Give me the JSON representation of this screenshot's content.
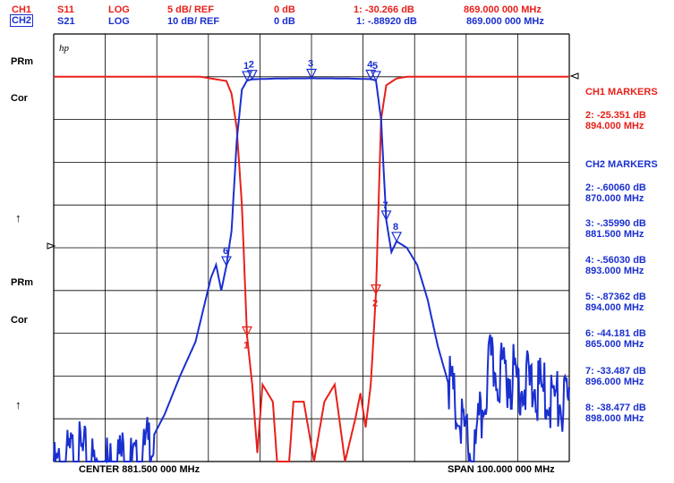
{
  "header": {
    "ch1": {
      "label": "CH1",
      "param": "S11",
      "format": "LOG",
      "scale": "5 dB/ REF",
      "ref": "0 dB",
      "marker": "1: -30.266 dB",
      "freq": "869.000 000 MHz"
    },
    "ch2": {
      "label": "CH2",
      "param": "S21",
      "format": "LOG",
      "scale": "10 dB/ REF",
      "ref": "0 dB",
      "marker": "1: -.88920 dB",
      "freq": "869.000 000 MHz"
    }
  },
  "side_labels": {
    "prm_top": "PRm",
    "cor_top": "Cor",
    "arrow_top": "↑",
    "prm_bot": "PRm",
    "cor_bot": "Cor",
    "arrow_bot": "↑"
  },
  "hp_logo": "hp",
  "ch1_markers": {
    "title": "CH1 MARKERS",
    "items": [
      {
        "label": "2: -25.351 dB",
        "freq": "894.000 MHz"
      }
    ]
  },
  "ch2_markers": {
    "title": "CH2 MARKERS",
    "items": [
      {
        "label": "2: -.60060 dB",
        "freq": "870.000 MHz"
      },
      {
        "label": "3: -.35990 dB",
        "freq": "881.500 MHz"
      },
      {
        "label": "4: -.56030 dB",
        "freq": "893.000 MHz"
      },
      {
        "label": "5: -.87362 dB",
        "freq": "894.000 MHz"
      },
      {
        "label": "6: -44.181 dB",
        "freq": "865.000 MHz"
      },
      {
        "label": "7: -33.487 dB",
        "freq": "896.000 MHz"
      },
      {
        "label": "8: -38.477 dB",
        "freq": "898.000 MHz"
      }
    ]
  },
  "footer": {
    "center": "CENTER  881.500 000 MHz",
    "span": "SPAN  100.000 000 MHz"
  },
  "colors": {
    "ch1": "#e8201a",
    "ch2": "#1a2fd0",
    "grid": "#000000"
  },
  "chart_data": {
    "type": "line",
    "x_range_mhz": [
      831.5,
      931.5
    ],
    "grid": true,
    "series": [
      {
        "name": "S11",
        "unit": "dB",
        "scale_db_per_div": 5,
        "ref_db": 0,
        "x": [
          831.5,
          860,
          865,
          866,
          867,
          868,
          869,
          870,
          871,
          872,
          874,
          876,
          878,
          880,
          882,
          884,
          886,
          888,
          890,
          891,
          892,
          893,
          894,
          895,
          896,
          898,
          900,
          931.5
        ],
        "y": [
          0,
          0,
          -0.5,
          -2,
          -6,
          -15,
          -30.3,
          -36,
          -44,
          -36,
          -38,
          -55,
          -38,
          -38,
          -45,
          -38,
          -36,
          -45,
          -40,
          -37,
          -41,
          -36,
          -25.4,
          -5,
          -1,
          -0.2,
          0,
          0
        ]
      },
      {
        "name": "S21",
        "unit": "dB",
        "scale_db_per_div": 10,
        "ref_db": 0,
        "x": [
          831.5,
          836,
          840,
          845,
          848,
          850,
          853,
          856,
          859,
          861,
          862,
          863,
          864,
          865,
          866,
          867,
          868,
          869,
          870,
          875,
          881.5,
          888,
          893,
          894,
          895,
          896,
          897,
          898,
          900,
          902,
          904,
          906,
          910,
          913,
          916,
          920,
          925,
          931.5
        ],
        "y": [
          -93,
          -88,
          -92,
          -89,
          -93,
          -86,
          -79,
          -70,
          -62,
          -52,
          -47,
          -44,
          -50,
          -44.2,
          -36,
          -15,
          -3,
          -0.89,
          -0.6,
          -0.4,
          -0.36,
          -0.4,
          -0.56,
          -0.87,
          -10,
          -33.5,
          -41,
          -38.5,
          -40,
          -44,
          -52,
          -63,
          -80,
          -90,
          -68,
          -70,
          -73,
          -78
        ]
      }
    ],
    "ch1_marker_freqs_mhz": [
      869,
      894
    ],
    "ch2_marker_freqs_mhz": [
      869,
      870,
      881.5,
      893,
      894,
      865,
      896,
      898
    ],
    "ch2_marker_numbers": [
      "1",
      "2",
      "3",
      "4",
      "5",
      "6",
      "7",
      "8"
    ]
  }
}
